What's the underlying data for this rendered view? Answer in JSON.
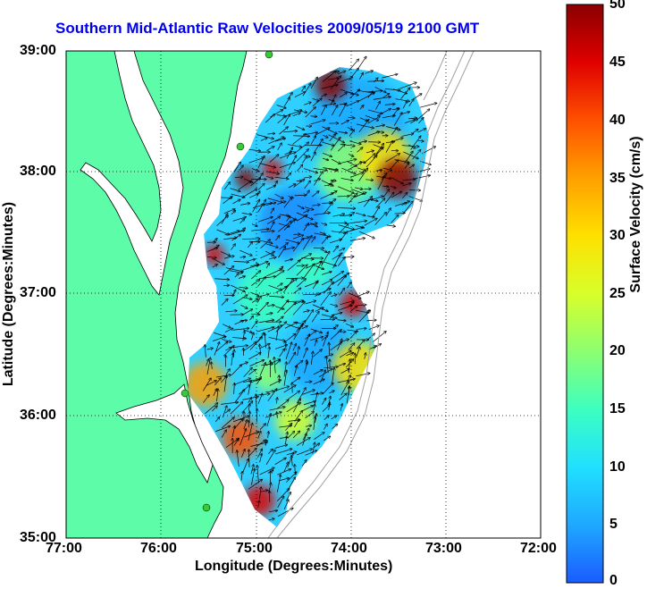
{
  "title": "Southern Mid-Atlantic Raw Velocities 2009/05/19 2100 GMT",
  "xlabel": "Longitude (Degrees:Minutes)",
  "ylabel": "Latitude (Degrees:Minutes)",
  "colorbar": {
    "label": "Surface Velocity (cm/s)",
    "ticks": [
      "50",
      "45",
      "40",
      "35",
      "30",
      "25",
      "20",
      "15",
      "10",
      "5",
      "0"
    ],
    "range": [
      0,
      50
    ],
    "colors": [
      "#1a5cff",
      "#1fa8ff",
      "#20e0ff",
      "#3dffc0",
      "#8cff70",
      "#d8ff2a",
      "#ffe000",
      "#ffa000",
      "#ff5000",
      "#e00000",
      "#8a0000"
    ]
  },
  "x_ticks": [
    "77:00",
    "76:00",
    "75:00",
    "74:00",
    "73:00",
    "72:00"
  ],
  "y_ticks": [
    "39:00",
    "38:00",
    "37:00",
    "36:00",
    "35:00"
  ],
  "colors": {
    "land": "#5dfca8",
    "water": "#ffffff",
    "coast": "#000000",
    "bathymetry": "#a0a0a0",
    "station": "#33cc33",
    "title": "#0000ee"
  }
}
